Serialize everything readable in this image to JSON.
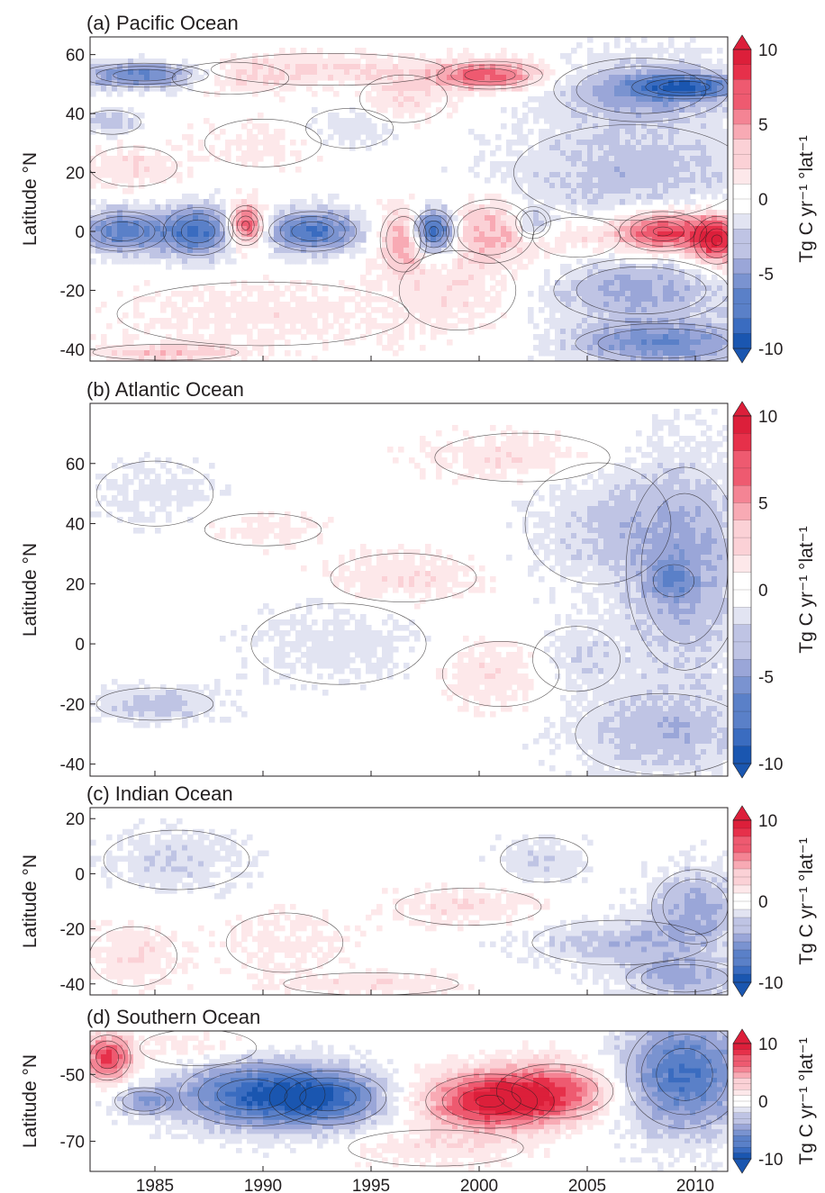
{
  "chart_data": [
    {
      "type": "heatmap",
      "title": "(a) Pacific Ocean",
      "ylabel": "Latitude °N",
      "xlim": [
        1982,
        2011.5
      ],
      "ylim": [
        -44,
        66
      ],
      "yticks": [
        "60",
        "40",
        "20",
        "0",
        "-20",
        "-40"
      ],
      "colorbar": {
        "label": "Tg C yr⁻¹ °lat⁻¹",
        "ticks": [
          "10",
          "5",
          "0",
          "-5",
          "-10"
        ],
        "range": [
          -10,
          10
        ]
      },
      "blobs": [
        {
          "x": 1984.5,
          "y": 53,
          "v": -7,
          "sx": 2.2,
          "sy": 3
        },
        {
          "x": 1988.5,
          "y": 52,
          "v": 2,
          "sx": 2,
          "sy": 4
        },
        {
          "x": 1993,
          "y": 55,
          "v": 2,
          "sx": 4,
          "sy": 4
        },
        {
          "x": 2000.5,
          "y": 53,
          "v": 7,
          "sx": 1.8,
          "sy": 3.5
        },
        {
          "x": 1996.5,
          "y": 45,
          "v": 2,
          "sx": 1.5,
          "sy": 6
        },
        {
          "x": 2007.5,
          "y": 48,
          "v": -4,
          "sx": 3,
          "sy": 8
        },
        {
          "x": 2009.5,
          "y": 49,
          "v": -7,
          "sx": 1.8,
          "sy": 3
        },
        {
          "x": 2007,
          "y": 20,
          "v": -3,
          "sx": 4,
          "sy": 12
        },
        {
          "x": 1983,
          "y": 37,
          "v": -3,
          "sx": 1,
          "sy": 3
        },
        {
          "x": 1984,
          "y": 22,
          "v": 2,
          "sx": 1.5,
          "sy": 5
        },
        {
          "x": 1990,
          "y": 30,
          "v": 1.5,
          "sx": 2,
          "sy": 6
        },
        {
          "x": 1994,
          "y": 35,
          "v": -2,
          "sx": 1.5,
          "sy": 5
        },
        {
          "x": 1983.5,
          "y": 0,
          "v": -7,
          "sx": 1.5,
          "sy": 5
        },
        {
          "x": 1987,
          "y": 0,
          "v": -8,
          "sx": 1.2,
          "sy": 6
        },
        {
          "x": 1989.2,
          "y": 2,
          "v": 9,
          "sx": 0.6,
          "sy": 5
        },
        {
          "x": 1992.3,
          "y": 0,
          "v": -8,
          "sx": 1.5,
          "sy": 5
        },
        {
          "x": 1996.5,
          "y": -3,
          "v": 5,
          "sx": 0.8,
          "sy": 8
        },
        {
          "x": 1997.9,
          "y": 0,
          "v": -10,
          "sx": 0.7,
          "sy": 5.5
        },
        {
          "x": 2000.5,
          "y": 0,
          "v": 4,
          "sx": 1.5,
          "sy": 8
        },
        {
          "x": 2002.5,
          "y": 3,
          "v": -4,
          "sx": 0.6,
          "sy": 4
        },
        {
          "x": 2004.5,
          "y": -2,
          "v": 2,
          "sx": 1.5,
          "sy": 5
        },
        {
          "x": 2008.5,
          "y": 0,
          "v": 9,
          "sx": 1.5,
          "sy": 5
        },
        {
          "x": 2011,
          "y": -3,
          "v": 9,
          "sx": 0.8,
          "sy": 6
        },
        {
          "x": 2007.5,
          "y": -20,
          "v": -4,
          "sx": 3,
          "sy": 8
        },
        {
          "x": 2008.5,
          "y": -38,
          "v": -6,
          "sx": 3,
          "sy": 5
        },
        {
          "x": 1990,
          "y": -28,
          "v": 1.5,
          "sx": 5,
          "sy": 8
        },
        {
          "x": 1985.5,
          "y": -41,
          "v": 3,
          "sx": 2.5,
          "sy": 2
        },
        {
          "x": 1999,
          "y": -20,
          "v": 1.5,
          "sx": 2,
          "sy": 10
        }
      ]
    },
    {
      "type": "heatmap",
      "title": "(b) Atlantic Ocean",
      "ylabel": "Latitude °N",
      "xlim": [
        1982,
        2011.5
      ],
      "ylim": [
        -44,
        80
      ],
      "yticks": [
        "60",
        "40",
        "20",
        "0",
        "-20",
        "-40"
      ],
      "colorbar": {
        "label": "Tg C yr⁻¹ °lat⁻¹",
        "ticks": [
          "10",
          "5",
          "0",
          "-5",
          "-10"
        ],
        "range": [
          -10,
          10
        ]
      },
      "blobs": [
        {
          "x": 2009.5,
          "y": 25,
          "v": -4,
          "sx": 2,
          "sy": 25
        },
        {
          "x": 2009,
          "y": 21,
          "v": -3,
          "sx": 0.7,
          "sy": 4
        },
        {
          "x": 2008.5,
          "y": -30,
          "v": -3,
          "sx": 3,
          "sy": 10
        },
        {
          "x": 1985,
          "y": -20,
          "v": -3,
          "sx": 2,
          "sy": 4
        },
        {
          "x": 1996.5,
          "y": 22,
          "v": 2,
          "sx": 2.5,
          "sy": 6
        },
        {
          "x": 2002,
          "y": 62,
          "v": 2,
          "sx": 3,
          "sy": 6
        },
        {
          "x": 2001,
          "y": -10,
          "v": 2,
          "sx": 2,
          "sy": 8
        },
        {
          "x": 1990,
          "y": 38,
          "v": 1.5,
          "sx": 2,
          "sy": 4
        },
        {
          "x": 1993.5,
          "y": 0,
          "v": -1.5,
          "sx": 3,
          "sy": 10
        },
        {
          "x": 1985,
          "y": 50,
          "v": -1.5,
          "sx": 2,
          "sy": 8
        },
        {
          "x": 2005.5,
          "y": 40,
          "v": -2,
          "sx": 2.5,
          "sy": 15
        },
        {
          "x": 2004.5,
          "y": -5,
          "v": -2,
          "sx": 1.5,
          "sy": 8
        }
      ]
    },
    {
      "type": "heatmap",
      "title": "(c) Indian Ocean",
      "ylabel": "Latitude °N",
      "xlim": [
        1982,
        2011.5
      ],
      "ylim": [
        -44,
        24
      ],
      "yticks": [
        "20",
        "0",
        "-20",
        "-40"
      ],
      "colorbar": {
        "label": "Tg C yr⁻¹ °lat⁻¹",
        "ticks": [
          "10",
          "0",
          "-10"
        ],
        "range": [
          -10,
          10
        ]
      },
      "blobs": [
        {
          "x": 2010,
          "y": -12,
          "v": -4,
          "sx": 1.5,
          "sy": 10
        },
        {
          "x": 2006.5,
          "y": -25,
          "v": -3,
          "sx": 3,
          "sy": 6
        },
        {
          "x": 2009.5,
          "y": -38,
          "v": -4,
          "sx": 2,
          "sy": 5
        },
        {
          "x": 1999.5,
          "y": -12,
          "v": 2,
          "sx": 2.5,
          "sy": 5
        },
        {
          "x": 1984,
          "y": -30,
          "v": 2,
          "sx": 1.5,
          "sy": 8
        },
        {
          "x": 1991,
          "y": -25,
          "v": 1.5,
          "sx": 2,
          "sy": 8
        },
        {
          "x": 1986,
          "y": 5,
          "v": -2,
          "sx": 2.5,
          "sy": 8
        },
        {
          "x": 1995,
          "y": -40,
          "v": 2,
          "sx": 3,
          "sy": 3
        },
        {
          "x": 2003,
          "y": 5,
          "v": -2,
          "sx": 1.5,
          "sy": 6
        }
      ]
    },
    {
      "type": "heatmap",
      "title": "(d) Southern Ocean",
      "ylabel": "Latitude °N",
      "xlim": [
        1982,
        2011.5
      ],
      "ylim": [
        -79,
        -37
      ],
      "yticks": [
        "-50",
        "-70"
      ],
      "colorbar": {
        "label": "Tg C yr⁻¹ °lat⁻¹",
        "ticks": [
          "10",
          "0",
          "-10"
        ],
        "range": [
          -10,
          10
        ]
      },
      "blobs": [
        {
          "x": 1982.8,
          "y": -45,
          "v": 8,
          "sx": 0.8,
          "sy": 5
        },
        {
          "x": 1989.5,
          "y": -56,
          "v": -8,
          "sx": 2.5,
          "sy": 7
        },
        {
          "x": 1993,
          "y": -57,
          "v": -7,
          "sx": 2,
          "sy": 6
        },
        {
          "x": 1984.5,
          "y": -58,
          "v": -4,
          "sx": 1,
          "sy": 3
        },
        {
          "x": 2000.5,
          "y": -58,
          "v": 9,
          "sx": 2.2,
          "sy": 6
        },
        {
          "x": 2003.5,
          "y": -55,
          "v": 6,
          "sx": 2,
          "sy": 6
        },
        {
          "x": 2009.5,
          "y": -50,
          "v": -8,
          "sx": 2,
          "sy": 12
        },
        {
          "x": 1998,
          "y": -72,
          "v": 1.5,
          "sx": 3,
          "sy": 4
        },
        {
          "x": 1987,
          "y": -42,
          "v": 1.5,
          "sx": 2,
          "sy": 4
        }
      ]
    }
  ],
  "xticks": [
    "1985",
    "1990",
    "1995",
    "2000",
    "2005",
    "2010"
  ],
  "xtick_values": [
    1985,
    1990,
    1995,
    2000,
    2005,
    2010
  ],
  "colors": {
    "scale": [
      "#1a56b0",
      "#3a6cc0",
      "#5a80c8",
      "#7a93d0",
      "#9aa6d8",
      "#bfc4e4",
      "#e2e4f2",
      "#ffffff",
      "#fde8ea",
      "#fbd1d6",
      "#f8aab4",
      "#f48494",
      "#ee5a70",
      "#e6304a",
      "#dc1f3a"
    ],
    "contour": "#231f20"
  }
}
